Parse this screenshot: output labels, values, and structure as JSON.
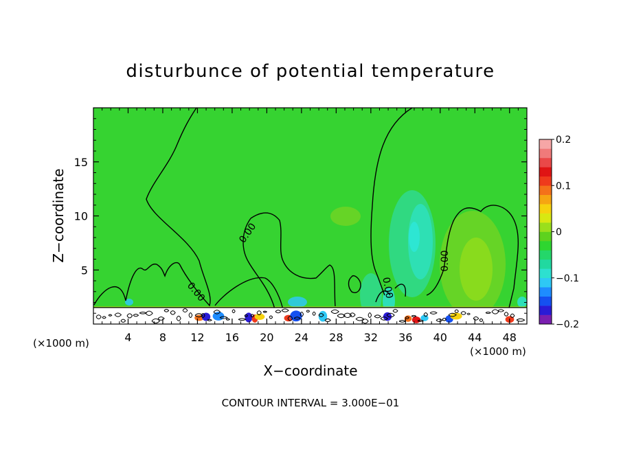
{
  "chart_data": {
    "type": "contour",
    "title": "disturbunce of potential temperature",
    "xlabel": "X−coordinate",
    "ylabel": "Z−coordinate",
    "x_unit": "(×1000 m)",
    "xlim": [
      0,
      50
    ],
    "ylim": [
      0,
      20
    ],
    "x_ticks": [
      4,
      8,
      12,
      16,
      20,
      24,
      28,
      32,
      36,
      40,
      44,
      48
    ],
    "y_ticks": [
      5,
      10,
      15
    ],
    "contour_labels": [
      "0.00",
      "0.00",
      "0.00",
      "0.00",
      "0.00"
    ],
    "contour_interval_text": "CONTOUR INTERVAL = 3.000E−01",
    "colorbar": {
      "min": -0.2,
      "max": 0.2,
      "tick_values": [
        0.2,
        0.1,
        0,
        -0.1,
        -0.2
      ],
      "tick_labels": [
        "0.2",
        "0.1",
        "0",
        "−0.1",
        "−0.2"
      ],
      "colors": [
        "#7a1fb0",
        "#2a1bd6",
        "#1550f0",
        "#1e8cff",
        "#2ec8f5",
        "#2de0d0",
        "#21d9a0",
        "#24d76a",
        "#2ed630",
        "#5ed21e",
        "#9adf1c",
        "#d8e812",
        "#f6d20e",
        "#f6a512",
        "#f4711a",
        "#ef3a1c",
        "#e01414",
        "#ea4848",
        "#f07a7a",
        "#f6a6a6"
      ]
    },
    "background_value_color": "#36d331"
  }
}
